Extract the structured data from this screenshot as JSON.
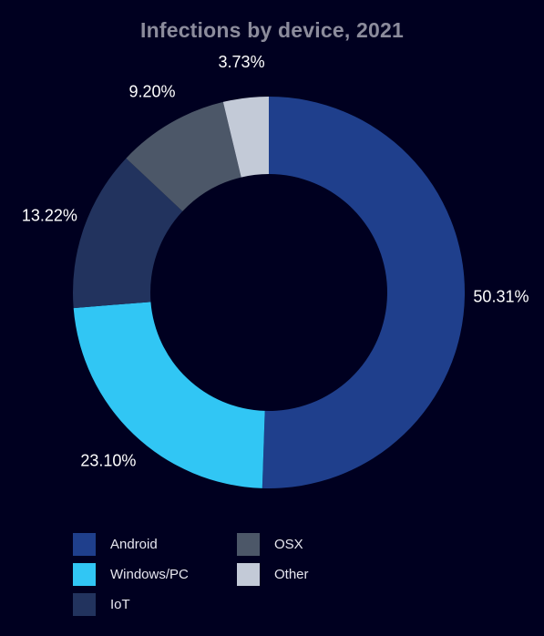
{
  "chart_data": {
    "type": "pie",
    "title": "Infections by device, 2021",
    "categories": [
      "Android",
      "Windows/PC",
      "IoT",
      "OSX",
      "Other"
    ],
    "values": [
      50.31,
      23.1,
      13.22,
      9.2,
      3.73
    ],
    "labels": [
      "50.31%",
      "23.10%",
      "13.22%",
      "9.20%",
      "3.73%"
    ],
    "colors": [
      "#1f3f8c",
      "#31c6f4",
      "#22335e",
      "#4c5768",
      "#c3cad7"
    ],
    "donut": true,
    "legend_position": "bottom",
    "label_color": "#ffffff"
  },
  "theme": {
    "background": "#000020",
    "title_color": "#8c8c9c",
    "legend_text_color": "#e7e7ee"
  }
}
